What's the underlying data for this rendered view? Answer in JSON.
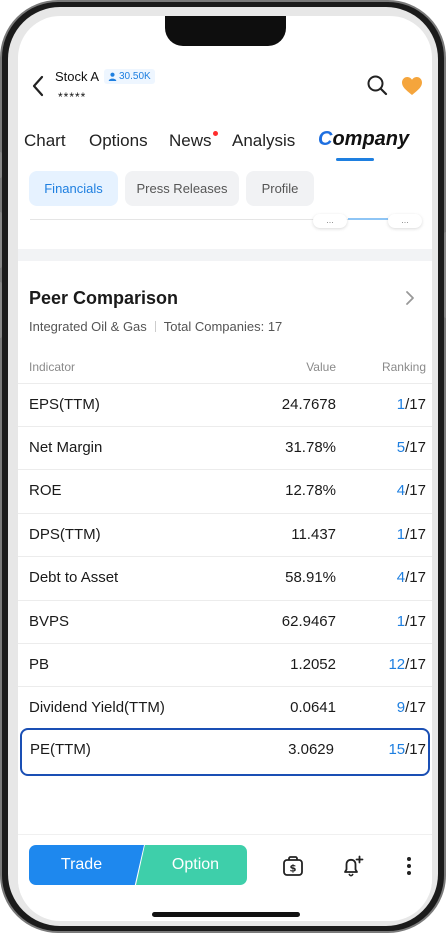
{
  "header": {
    "stock_name": "Stock A",
    "followers": "30.50K",
    "code": "*****"
  },
  "tabs": [
    {
      "label": "Chart"
    },
    {
      "label": "Options"
    },
    {
      "label": "News"
    },
    {
      "label": "Analysis"
    },
    {
      "label": "Company"
    }
  ],
  "active_tab": "Company",
  "subtabs": [
    {
      "label": "Financials",
      "active": true
    },
    {
      "label": "Press Releases",
      "active": false
    },
    {
      "label": "Profile",
      "active": false
    }
  ],
  "ghost_pill": "...",
  "peer": {
    "title": "Peer Comparison",
    "industry": "Integrated Oil & Gas",
    "total": "Total Companies: 17",
    "headers": {
      "indicator": "Indicator",
      "value": "Value",
      "ranking": "Ranking"
    },
    "rows": [
      {
        "name": "EPS(TTM)",
        "value": "24.7678",
        "rank": "1",
        "of": "/17"
      },
      {
        "name": "Net Margin",
        "value": "31.78%",
        "rank": "5",
        "of": "/17"
      },
      {
        "name": "ROE",
        "value": "12.78%",
        "rank": "4",
        "of": "/17"
      },
      {
        "name": "DPS(TTM)",
        "value": "11.437",
        "rank": "1",
        "of": "/17"
      },
      {
        "name": "Debt to Asset",
        "value": "58.91%",
        "rank": "4",
        "of": "/17"
      },
      {
        "name": "BVPS",
        "value": "62.9467",
        "rank": "1",
        "of": "/17"
      },
      {
        "name": "PB",
        "value": "1.2052",
        "rank": "12",
        "of": "/17"
      },
      {
        "name": "Dividend Yield(TTM)",
        "value": "0.0641",
        "rank": "9",
        "of": "/17"
      },
      {
        "name": "PE(TTM)",
        "value": "3.0629",
        "rank": "15",
        "of": "/17"
      }
    ]
  },
  "bottom": {
    "trade": "Trade",
    "option": "Option"
  },
  "colors": {
    "accent": "#1e7fe0",
    "trade": "#1e88ee",
    "option": "#3ecfaa",
    "highlight_box": "#1a4fb4",
    "heart": "#f5a53c"
  }
}
